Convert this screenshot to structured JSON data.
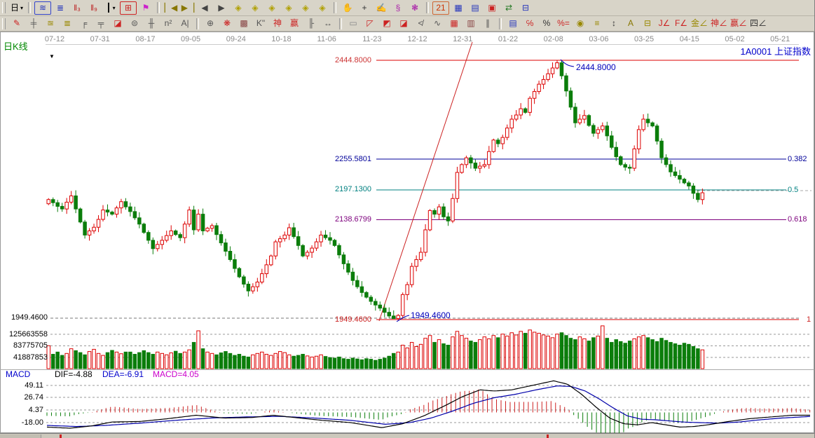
{
  "toolbar_row1": [
    {
      "name": "period-day-button",
      "glyph": "日",
      "color": "#000000",
      "caret": true
    },
    {
      "sep": true
    },
    {
      "name": "overlay-trend-button",
      "glyph": "≋",
      "color": "#2233bb",
      "boxed": "#3344cc"
    },
    {
      "name": "f10-info-button",
      "glyph": "≣",
      "color": "#2233bb"
    },
    {
      "name": "kline-3-button",
      "glyph": "ǁ₃",
      "color": "#bb2222"
    },
    {
      "name": "kline-9-button",
      "glyph": "ǁ₉",
      "color": "#bb2222"
    },
    {
      "name": "candle-style-button",
      "glyph": "┃",
      "color": "#000000",
      "caret": true
    },
    {
      "name": "indicator-pane-button",
      "glyph": "⊞",
      "color": "#cc2222",
      "boxed": "#cc2222"
    },
    {
      "name": "color-flag-button",
      "glyph": "⚑",
      "color": "#cc22cc"
    },
    {
      "sep": true
    },
    {
      "name": "first-screen-button",
      "glyph": "▏◀",
      "color": "#887700"
    },
    {
      "name": "last-screen-button",
      "glyph": "▶▕",
      "color": "#887700"
    },
    {
      "name": "prev-bar-button",
      "glyph": "◀",
      "color": "#444444"
    },
    {
      "name": "next-bar-button",
      "glyph": "▶",
      "color": "#444444"
    },
    {
      "name": "pan-left-button",
      "glyph": "◈",
      "color": "#b0a000"
    },
    {
      "name": "pan-right-button",
      "glyph": "◈",
      "color": "#b0a000"
    },
    {
      "name": "zoom-in-h-button",
      "glyph": "◈",
      "color": "#b0a000"
    },
    {
      "name": "zoom-out-h-button",
      "glyph": "◈",
      "color": "#b0a000"
    },
    {
      "name": "expand-spacing-button",
      "glyph": "◈",
      "color": "#b0a000"
    },
    {
      "name": "shrink-spacing-button",
      "glyph": "◈",
      "color": "#b0a000"
    },
    {
      "sep": true
    },
    {
      "name": "hand-tool-button",
      "glyph": "✋",
      "color": "#333333"
    },
    {
      "name": "crosshair-tool-button",
      "glyph": "+",
      "color": "#333333"
    },
    {
      "name": "mark-tool-button",
      "glyph": "✍",
      "color": "#cc2222"
    },
    {
      "name": "stamp-tool-button",
      "glyph": "§",
      "color": "#aa22aa"
    },
    {
      "name": "analysis-net-button",
      "glyph": "❃",
      "color": "#aa22aa"
    },
    {
      "sep": true
    },
    {
      "name": "calendar-button",
      "glyph": "21",
      "color": "#cc3300",
      "boxed": "#cc6633"
    },
    {
      "name": "calculator-button",
      "glyph": "▦",
      "color": "#2233bb"
    },
    {
      "name": "notepad-button",
      "glyph": "▤",
      "color": "#2233bb"
    },
    {
      "name": "save-button",
      "glyph": "▣",
      "color": "#cc2222"
    },
    {
      "name": "export-button",
      "glyph": "⇄",
      "color": "#227722"
    },
    {
      "name": "print-button",
      "glyph": "⊟",
      "color": "#2233bb"
    }
  ],
  "toolbar_row2": [
    {
      "name": "pen-tool-button",
      "glyph": "✎",
      "color": "#cc2222"
    },
    {
      "name": "line-grid-tool-button",
      "glyph": "╪",
      "color": "#555555"
    },
    {
      "name": "golden-horizontal-tool-button",
      "glyph": "≊",
      "color": "#998800"
    },
    {
      "name": "golden-section-tool-button",
      "glyph": "≣",
      "color": "#998800"
    },
    {
      "name": "percent-lines-tool-button",
      "glyph": "╒",
      "color": "#555555"
    },
    {
      "name": "band-lines-tool-button",
      "glyph": "╤",
      "color": "#555555"
    },
    {
      "name": "eraser-tool-button",
      "glyph": "◪",
      "color": "#cc2222"
    },
    {
      "name": "cycle-lines-tool-button",
      "glyph": "⊜",
      "color": "#555555"
    },
    {
      "name": "grid-tool-button",
      "glyph": "╫",
      "color": "#555555"
    },
    {
      "name": "fib-zone-tool-button",
      "glyph": "n²",
      "color": "#555555"
    },
    {
      "name": "text-tool-button",
      "glyph": "A|",
      "color": "#555555"
    },
    {
      "sep": true
    },
    {
      "name": "gann-circle-tool-button",
      "glyph": "⊕",
      "color": "#555555"
    },
    {
      "name": "spider-web-tool-button",
      "glyph": "❋",
      "color": "#cc2222"
    },
    {
      "name": "web-box-tool-button",
      "glyph": "▩",
      "color": "#884444"
    },
    {
      "name": "kline-mark-tool-button",
      "glyph": "K\"",
      "color": "#555555"
    },
    {
      "name": "shen-grid-tool-button",
      "glyph": "神",
      "color": "#cc2222"
    },
    {
      "name": "ying-grid-tool-button",
      "glyph": "赢",
      "color": "#cc2222"
    },
    {
      "name": "feng-grid-tool-button",
      "glyph": "╟",
      "color": "#555555"
    },
    {
      "name": "ruler-tool-button",
      "glyph": "↔",
      "color": "#555555"
    },
    {
      "sep": true
    },
    {
      "name": "box-range-tool-button",
      "glyph": "▭",
      "color": "#888888"
    },
    {
      "name": "gann-fan-tool-button",
      "glyph": "◸",
      "color": "#cc2222"
    },
    {
      "name": "fan-box-tool-button",
      "glyph": "◩",
      "color": "#cc2222"
    },
    {
      "name": "shaded-box-tool-button",
      "glyph": "◪",
      "color": "#cc2222"
    },
    {
      "name": "angle-fan-tool-button",
      "glyph": "≮",
      "color": "#555555"
    },
    {
      "name": "zigzag-tool-button",
      "glyph": "∿",
      "color": "#555555"
    },
    {
      "name": "gann-grid-tool-button",
      "glyph": "▦",
      "color": "#cc2222"
    },
    {
      "name": "gann-box-tool-button",
      "glyph": "▥",
      "color": "#884444"
    },
    {
      "name": "parallel-lines-tool-button",
      "glyph": "∥",
      "color": "#555555"
    },
    {
      "sep": true
    },
    {
      "name": "indicator-list-button",
      "glyph": "▤",
      "color": "#2233bb"
    },
    {
      "name": "percent-retrace-tool-button",
      "glyph": "℅",
      "color": "#cc2222"
    },
    {
      "name": "percent-tool-button",
      "glyph": "%",
      "color": "#333333"
    },
    {
      "name": "percent-line-tool-button",
      "glyph": "%=",
      "color": "#cc2222"
    },
    {
      "name": "gold-coin-tool-button",
      "glyph": "◉",
      "color": "#998800"
    },
    {
      "name": "gold-line-tool-button",
      "glyph": "≡",
      "color": "#998800"
    },
    {
      "name": "updown-arrow-tool-button",
      "glyph": "↕",
      "color": "#333333"
    },
    {
      "name": "letter-angle-tool-button",
      "glyph": "A",
      "color": "#887700"
    },
    {
      "name": "gold-bar-tool-button",
      "glyph": "⊟",
      "color": "#998800"
    },
    {
      "name": "j-angle-tool-button",
      "glyph": "J∠",
      "color": "#cc2222"
    },
    {
      "name": "f-angle-tool-button",
      "glyph": "F∠",
      "color": "#cc2222"
    },
    {
      "name": "gold-angle-tool-button",
      "glyph": "金∠",
      "color": "#998800"
    },
    {
      "name": "shen-angle-tool-button",
      "glyph": "神∠",
      "color": "#cc2222"
    },
    {
      "name": "ying-angle-tool-button",
      "glyph": "赢∠",
      "color": "#cc2222"
    },
    {
      "name": "si-angle-tool-button",
      "glyph": "四∠",
      "color": "#333333"
    }
  ],
  "chart": {
    "period_label": "日K线",
    "symbol_code": "1A0001",
    "symbol_name": "上证指数",
    "price_labels": {
      "high": "2444.8000",
      "fib382": "2255.5801",
      "fib500": "2197.1300",
      "fib618": "2138.6799",
      "low": "1949.4600",
      "low_axis": "1949.4600",
      "high_annotation": "2444.8000",
      "low_annotation": "1949.4600"
    },
    "fib_labels": {
      "r382": "0.382",
      "r500": "0.5",
      "r618": "0.618",
      "r1000": "1"
    },
    "volume_axis": [
      "125663558",
      "83775705",
      "41887853"
    ],
    "macd_header": {
      "title": "MACD",
      "dif": "DIF=-4.88",
      "dea": "DEA=-6.91",
      "macd": "MACD=4.05"
    },
    "macd_axis": [
      "49.11",
      "26.74",
      "4.37",
      "-18.00"
    ]
  },
  "chart_data": {
    "type": "candlestick",
    "instrument": "1A0001 上证指数",
    "period": "日K线",
    "x_axis_dates": [
      "07-12",
      "07-31",
      "08-17",
      "09-05",
      "09-24",
      "10-18",
      "11-06",
      "11-23",
      "12-12",
      "12-31",
      "01-22",
      "02-08",
      "03-06",
      "03-25",
      "04-15",
      "05-02",
      "05-21"
    ],
    "price_levels": {
      "high": 2444.8,
      "fib_0382": 2255.5801,
      "fib_0500": 2197.13,
      "fib_0618": 2138.6799,
      "low": 1949.46
    },
    "fib_ratios": [
      0.382,
      0.5,
      0.618,
      1
    ],
    "closes": [
      2178,
      2172,
      2165,
      2160,
      2173,
      2185,
      2160,
      2135,
      2110,
      2118,
      2125,
      2140,
      2158,
      2154,
      2150,
      2162,
      2174,
      2164,
      2155,
      2143,
      2131,
      2115,
      2100,
      2084,
      2092,
      2100,
      2109,
      2118,
      2111,
      2105,
      2131,
      2158,
      2120,
      2150,
      2118,
      2123,
      2128,
      2111,
      2095,
      2079,
      2063,
      2046,
      2030,
      2016,
      2003,
      2011,
      2020,
      2036,
      2053,
      2070,
      2097,
      2103,
      2110,
      2124,
      2107,
      2090,
      2070,
      2077,
      2085,
      2097,
      2110,
      2105,
      2100,
      2090,
      2072,
      2055,
      2039,
      2023,
      2011,
      2000,
      1991,
      1983,
      1976,
      1970,
      1962,
      1955,
      1950,
      1956,
      1996,
      2015,
      2050,
      2063,
      2077,
      2120,
      2157,
      2150,
      2164,
      2145,
      2137,
      2180,
      2230,
      2245,
      2258,
      2248,
      2238,
      2242,
      2245,
      2270,
      2292,
      2285,
      2297,
      2315,
      2332,
      2340,
      2352,
      2345,
      2372,
      2385,
      2399,
      2408,
      2419,
      2430,
      2440,
      2415,
      2386,
      2355,
      2325,
      2332,
      2339,
      2320,
      2305,
      2312,
      2319,
      2300,
      2278,
      2260,
      2245,
      2240,
      2238,
      2275,
      2312,
      2332,
      2325,
      2319,
      2290,
      2258,
      2245,
      2231,
      2224,
      2217,
      2210,
      2204,
      2190,
      2178,
      2191
    ],
    "volumes_millions": [
      83,
      52,
      60,
      48,
      55,
      72,
      65,
      58,
      50,
      62,
      70,
      55,
      48,
      58,
      66,
      60,
      54,
      60,
      60,
      52,
      58,
      65,
      58,
      52,
      60,
      55,
      50,
      57,
      63,
      55,
      60,
      68,
      95,
      137,
      72,
      60,
      55,
      50,
      57,
      62,
      55,
      48,
      52,
      45,
      42,
      50,
      55,
      60,
      52,
      48,
      55,
      62,
      58,
      50,
      45,
      48,
      52,
      46,
      42,
      45,
      50,
      44,
      40,
      38,
      42,
      36,
      34,
      38,
      35,
      32,
      36,
      34,
      30,
      34,
      38,
      45,
      55,
      60,
      85,
      75,
      95,
      80,
      88,
      110,
      120,
      95,
      105,
      90,
      85,
      115,
      135,
      120,
      110,
      100,
      95,
      105,
      115,
      108,
      120,
      112,
      125,
      118,
      130,
      122,
      135,
      128,
      140,
      132,
      128,
      122,
      118,
      112,
      125,
      130,
      120,
      110,
      105,
      115,
      108,
      100,
      112,
      118,
      155,
      110,
      95,
      105,
      98,
      92,
      100,
      108,
      115,
      120,
      112,
      105,
      98,
      110,
      102,
      95,
      90,
      85,
      92,
      88,
      80,
      72,
      68
    ],
    "volume_scale": [
      41887853,
      83775705,
      125663558
    ],
    "macd": {
      "dif": -4.88,
      "dea": -6.91,
      "macd": 4.05,
      "scale": [
        49.11,
        26.74,
        4.37,
        -18.0
      ],
      "dif_points": [
        [
          67,
          -26
        ],
        [
          100,
          -28
        ],
        [
          130,
          -24
        ],
        [
          160,
          -17
        ],
        [
          200,
          -16
        ],
        [
          240,
          -11
        ],
        [
          280,
          -5
        ],
        [
          320,
          -10
        ],
        [
          360,
          -9
        ],
        [
          390,
          -5
        ],
        [
          420,
          -9
        ],
        [
          460,
          -14
        ],
        [
          500,
          -18
        ],
        [
          545,
          -27
        ],
        [
          575,
          -20
        ],
        [
          605,
          -6
        ],
        [
          635,
          12
        ],
        [
          660,
          28
        ],
        [
          685,
          40
        ],
        [
          705,
          38
        ],
        [
          730,
          40
        ],
        [
          760,
          48
        ],
        [
          790,
          56
        ],
        [
          810,
          50
        ],
        [
          830,
          32
        ],
        [
          850,
          10
        ],
        [
          870,
          -10
        ],
        [
          890,
          -20
        ],
        [
          910,
          -22
        ],
        [
          930,
          -18
        ],
        [
          950,
          -22
        ],
        [
          970,
          -26
        ],
        [
          990,
          -25
        ],
        [
          1010,
          -22
        ],
        [
          1040,
          -16
        ],
        [
          1070,
          -11
        ],
        [
          1100,
          -8
        ],
        [
          1130,
          -5
        ],
        [
          1160,
          -4.9
        ]
      ],
      "dea_points": [
        [
          67,
          -23
        ],
        [
          110,
          -25
        ],
        [
          150,
          -23
        ],
        [
          200,
          -19
        ],
        [
          250,
          -14
        ],
        [
          300,
          -10
        ],
        [
          350,
          -8
        ],
        [
          400,
          -7
        ],
        [
          450,
          -10
        ],
        [
          500,
          -14
        ],
        [
          550,
          -21
        ],
        [
          585,
          -18
        ],
        [
          615,
          -10
        ],
        [
          645,
          2
        ],
        [
          675,
          16
        ],
        [
          705,
          26
        ],
        [
          735,
          32
        ],
        [
          765,
          40
        ],
        [
          795,
          47
        ],
        [
          815,
          46
        ],
        [
          835,
          38
        ],
        [
          855,
          24
        ],
        [
          875,
          8
        ],
        [
          895,
          -6
        ],
        [
          915,
          -12
        ],
        [
          935,
          -13
        ],
        [
          955,
          -15
        ],
        [
          975,
          -17
        ],
        [
          995,
          -18
        ],
        [
          1025,
          -19
        ],
        [
          1055,
          -17
        ],
        [
          1085,
          -13
        ],
        [
          1115,
          -10
        ],
        [
          1160,
          -6.9
        ]
      ]
    },
    "colors": {
      "up": "#dd0000",
      "down": "#0b7d0b",
      "level_high_low": "#dd0000",
      "level_382": "#000099",
      "level_500": "#008080",
      "level_618": "#7d007d",
      "annotation": "#0000bb",
      "trendline": "#cc2222",
      "dif_line": "#000000",
      "dea_line": "#0000aa"
    }
  },
  "bottom_strip": {
    "marks_x": [
      85,
      780
    ]
  }
}
